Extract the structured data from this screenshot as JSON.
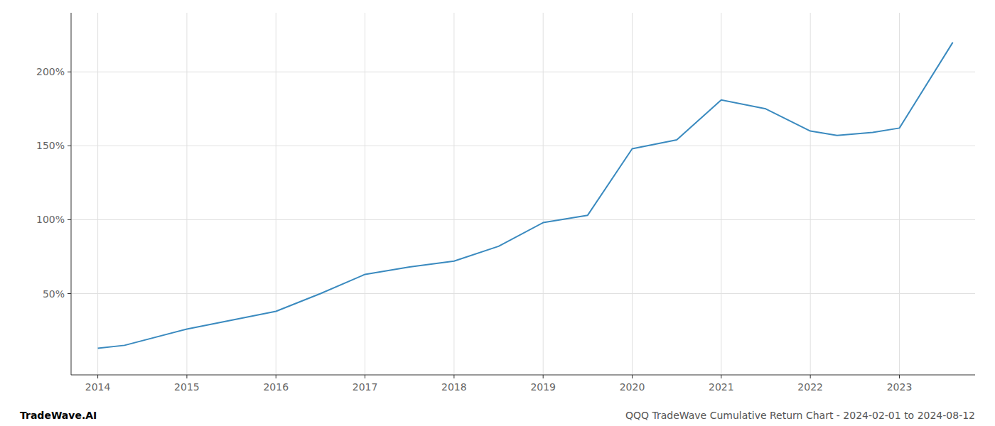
{
  "chart_data": {
    "type": "line",
    "title": "QQQ TradeWave Cumulative Return Chart - 2024-02-01 to 2024-08-12",
    "annotations": [
      "TradeWave.AI"
    ],
    "x": [
      2014.0,
      2014.3,
      2015.0,
      2015.5,
      2016.0,
      2016.5,
      2017.0,
      2017.5,
      2018.0,
      2018.5,
      2019.0,
      2019.5,
      2020.0,
      2020.5,
      2021.0,
      2021.5,
      2022.0,
      2022.3,
      2022.7,
      2023.0,
      2023.6
    ],
    "values": [
      13,
      15,
      26,
      32,
      38,
      50,
      63,
      68,
      72,
      82,
      98,
      103,
      148,
      154,
      181,
      175,
      160,
      157,
      159,
      162,
      220
    ],
    "color": "#3a8abf",
    "xlim": [
      2013.7,
      2023.85
    ],
    "ylim": [
      -5,
      240
    ],
    "xticks": [
      2014,
      2015,
      2016,
      2017,
      2018,
      2019,
      2020,
      2021,
      2022,
      2023
    ],
    "yticks": [
      {
        "value": 50,
        "label": "50%"
      },
      {
        "value": 100,
        "label": "100%"
      },
      {
        "value": 150,
        "label": "150%"
      },
      {
        "value": 200,
        "label": "200%"
      }
    ],
    "grid": true
  }
}
